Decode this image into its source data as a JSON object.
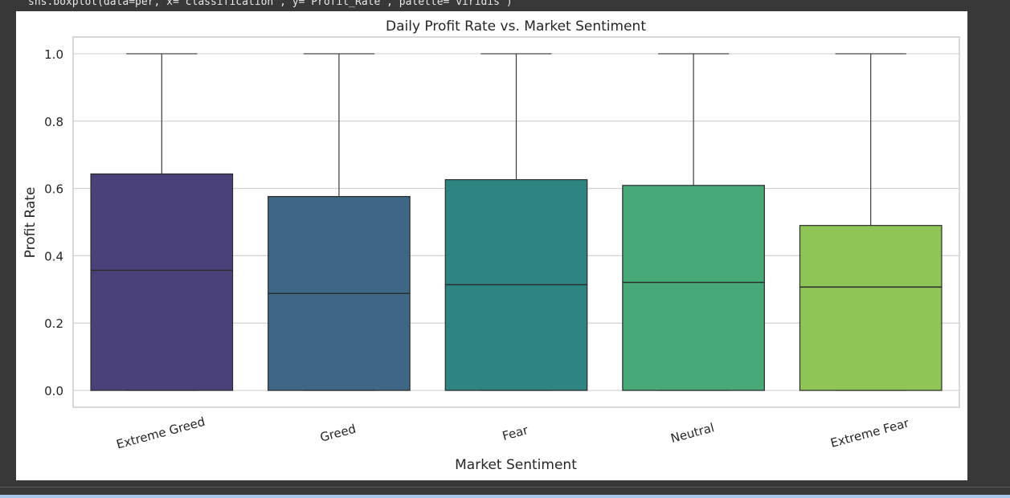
{
  "notebook": {
    "code_line": "sns.boxplot(data=per, x='classification', y='Profit_Rate', palette='viridis')"
  },
  "chart_data": {
    "type": "box",
    "title": "Daily Profit Rate vs. Market Sentiment",
    "xlabel": "Market Sentiment",
    "ylabel": "Profit Rate",
    "ylim": [
      -0.05,
      1.05
    ],
    "yticks": [
      0.0,
      0.2,
      0.4,
      0.6,
      0.8,
      1.0
    ],
    "ytick_labels": [
      "0.0",
      "0.2",
      "0.4",
      "0.6",
      "0.8",
      "1.0"
    ],
    "grid": true,
    "categories": [
      "Extreme Greed",
      "Greed",
      "Fear",
      "Neutral",
      "Extreme Fear"
    ],
    "boxes": [
      {
        "category": "Extreme Greed",
        "whisker_low": 0.0,
        "q1": 0.0,
        "median": 0.357,
        "q3": 0.643,
        "whisker_high": 1.0,
        "color": "#4a417a"
      },
      {
        "category": "Greed",
        "whisker_low": 0.0,
        "q1": 0.0,
        "median": 0.288,
        "q3": 0.576,
        "whisker_high": 1.0,
        "color": "#3d6785"
      },
      {
        "category": "Fear",
        "whisker_low": 0.0,
        "q1": 0.0,
        "median": 0.314,
        "q3": 0.626,
        "whisker_high": 1.0,
        "color": "#2e8480"
      },
      {
        "category": "Neutral",
        "whisker_low": 0.0,
        "q1": 0.0,
        "median": 0.321,
        "q3": 0.609,
        "whisker_high": 1.0,
        "color": "#47a878"
      },
      {
        "category": "Extreme Fear",
        "whisker_low": 0.0,
        "q1": 0.0,
        "median": 0.307,
        "q3": 0.49,
        "whisker_high": 1.0,
        "color": "#8fc457"
      }
    ]
  }
}
